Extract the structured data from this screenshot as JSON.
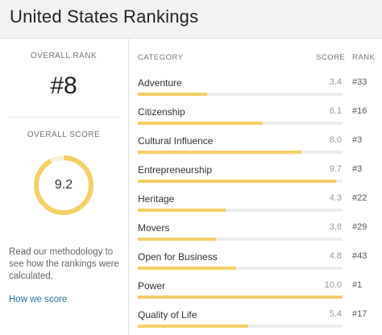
{
  "header": {
    "title": "United States Rankings"
  },
  "overall": {
    "rank_label": "OVERALL RANK",
    "rank_value": "#8",
    "score_label": "OVERALL SCORE",
    "score_value": "9.2",
    "score_fraction": 0.92
  },
  "methodology": {
    "text": "Read our methodology to see how the rankings were calculated.",
    "link_label": "How we score"
  },
  "table": {
    "headers": {
      "category": "CATEGORY",
      "score": "SCORE",
      "rank": "RANK"
    },
    "rows": [
      {
        "category": "Adventure",
        "score": "3.4",
        "rank": "#33"
      },
      {
        "category": "Citizenship",
        "score": "6.1",
        "rank": "#16"
      },
      {
        "category": "Cultural Influence",
        "score": "8.0",
        "rank": "#3"
      },
      {
        "category": "Entrepreneurship",
        "score": "9.7",
        "rank": "#3"
      },
      {
        "category": "Heritage",
        "score": "4.3",
        "rank": "#22"
      },
      {
        "category": "Movers",
        "score": "3.8",
        "rank": "#29"
      },
      {
        "category": "Open for Business",
        "score": "4.8",
        "rank": "#43"
      },
      {
        "category": "Power",
        "score": "10.0",
        "rank": "#1"
      },
      {
        "category": "Quality of Life",
        "score": "5.4",
        "rank": "#17"
      }
    ]
  },
  "colors": {
    "accent": "#f5cf66",
    "track": "#ececec",
    "link": "#2a6fb0"
  }
}
